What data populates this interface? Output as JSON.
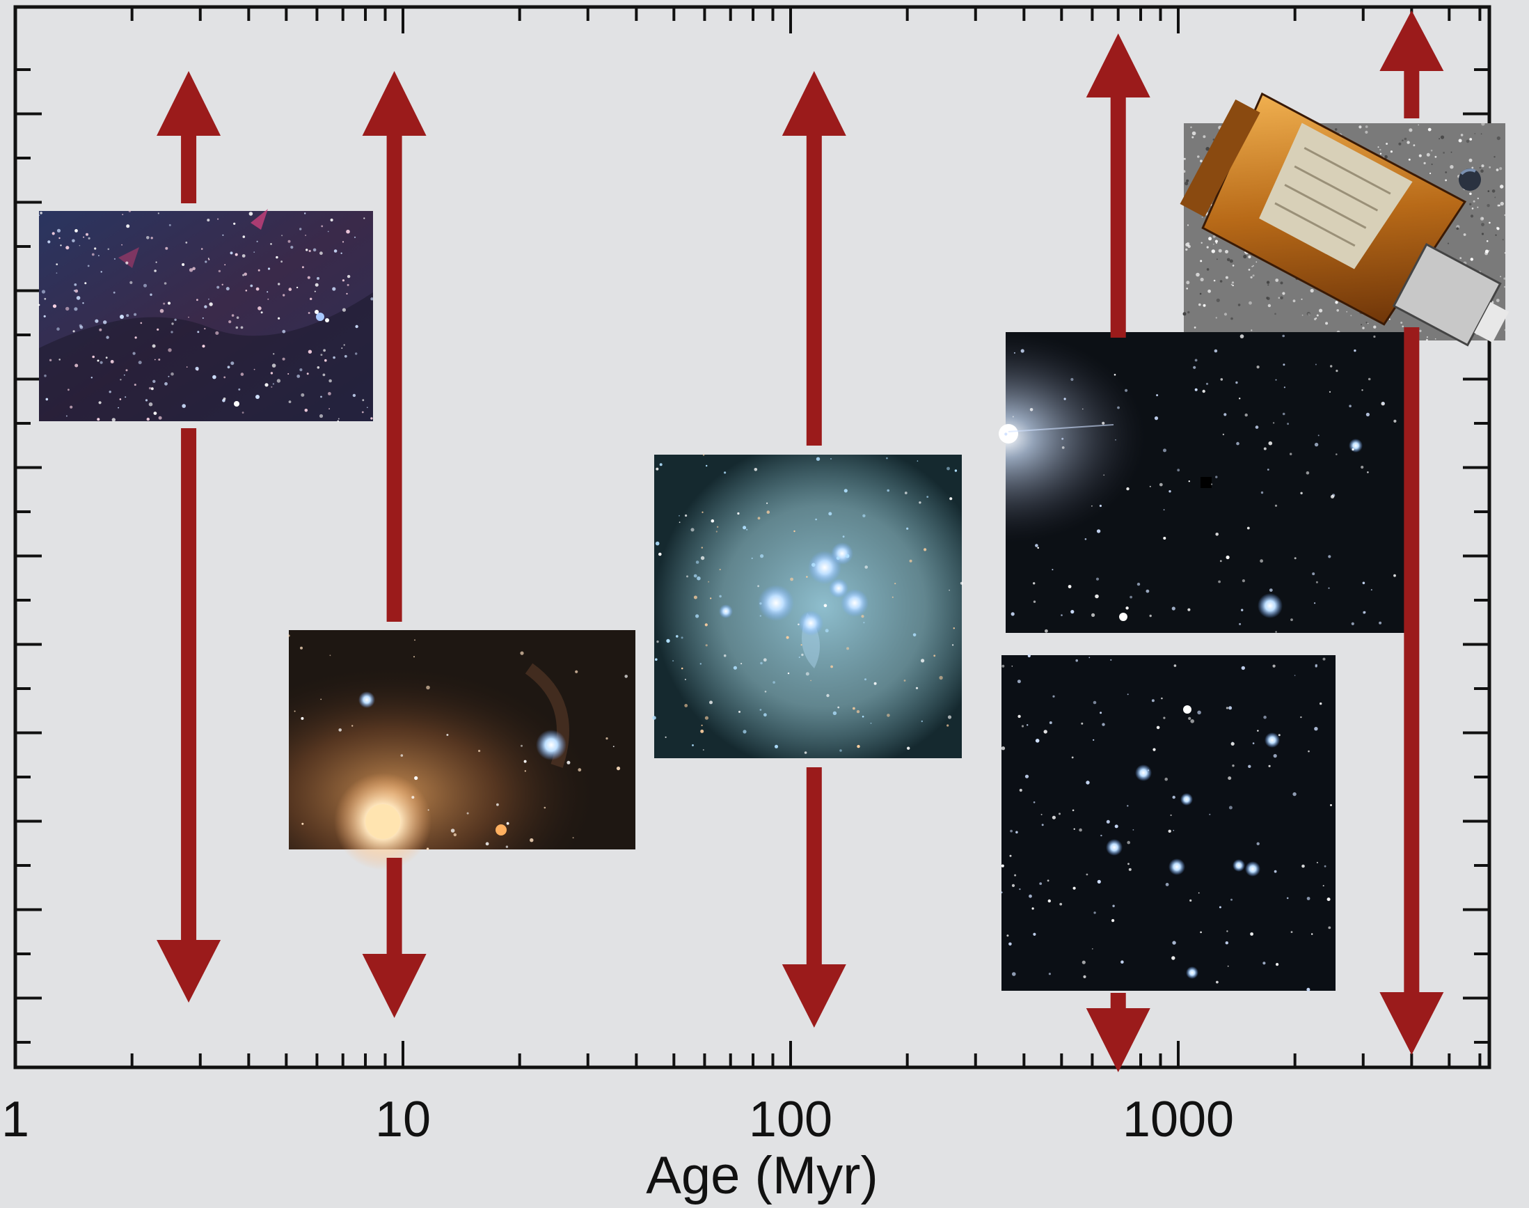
{
  "chart_data": {
    "type": "range",
    "title": "",
    "xlabel": "Age (Myr)",
    "ylabel": "",
    "xscale": "log",
    "xlim": [
      1,
      6000
    ],
    "xticks": [
      {
        "value": 1,
        "label": "1"
      },
      {
        "value": 10,
        "label": "10"
      },
      {
        "value": 100,
        "label": "100"
      },
      {
        "value": 1000,
        "label": "1000"
      }
    ],
    "grid": false,
    "colors": {
      "arrow": "#9b1b1b",
      "axis": "#111111",
      "background": "#e1e2e4"
    },
    "arrows": [
      {
        "x": 2.8,
        "name": ""
      },
      {
        "x": 9.5,
        "name": ""
      },
      {
        "x": 115,
        "name": ""
      },
      {
        "x": 700,
        "name": ""
      },
      {
        "x": 4000,
        "name": ""
      }
    ],
    "images": [
      {
        "name": "star-field-milky-way-icon",
        "x_range": [
          1.1,
          8
        ]
      },
      {
        "name": "rho-ophiuchi-nebula-icon",
        "x_range": [
          5.2,
          40
        ]
      },
      {
        "name": "pleiades-nebula-icon",
        "x_range": [
          45,
          280
        ]
      },
      {
        "name": "hyades-star-field-icon",
        "x_range": [
          550,
          6000
        ]
      },
      {
        "name": "praesepe-cluster-icon",
        "x_range": [
          350,
          2500
        ]
      },
      {
        "name": "kepler-spacecraft-icon",
        "x_range": [
          1000,
          5800
        ]
      }
    ]
  }
}
